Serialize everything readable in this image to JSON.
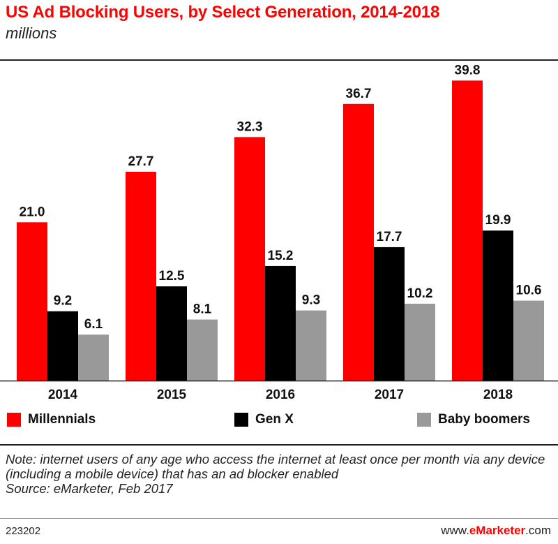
{
  "title": "US Ad Blocking Users, by Select Generation, 2014-2018",
  "subtitle": "millions",
  "colors": {
    "millennials": "#ff0000",
    "genx": "#000000",
    "boomers": "#999999",
    "accent": "#ff0000"
  },
  "chart_data": {
    "type": "bar",
    "title": "US Ad Blocking Users, by Select Generation, 2014-2018",
    "ylabel": "millions",
    "xlabel": "",
    "categories": [
      "2014",
      "2015",
      "2016",
      "2017",
      "2018"
    ],
    "series": [
      {
        "name": "Millennials",
        "values": [
          21.0,
          27.7,
          32.3,
          36.7,
          39.8
        ]
      },
      {
        "name": "Gen X",
        "values": [
          9.2,
          12.5,
          15.2,
          17.7,
          19.9
        ]
      },
      {
        "name": "Baby boomers",
        "values": [
          6.1,
          8.1,
          9.3,
          10.2,
          10.6
        ]
      }
    ],
    "ylim": [
      0,
      41.5
    ],
    "grid": false,
    "legend": "bottom"
  },
  "legend": [
    {
      "label": "Millennials"
    },
    {
      "label": "Gen X"
    },
    {
      "label": "Baby boomers"
    }
  ],
  "note": "Note: internet users of any age who access the internet at least once per month via any device (including a mobile device) that has an ad blocker enabled",
  "source": "Source: eMarketer, Feb 2017",
  "footer": {
    "id": "223202",
    "brand_prefix": "www.",
    "brand_name": "eMarketer",
    "brand_suffix": ".com"
  }
}
